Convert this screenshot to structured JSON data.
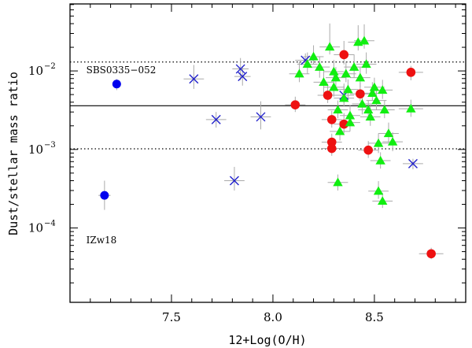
{
  "chart_data": {
    "type": "scatter",
    "title": "",
    "xlabel": "12+Log(O/H)",
    "ylabel": "Dust/stellar mass ratio",
    "x_scale": "linear",
    "y_scale": "log",
    "xlim": [
      7.0,
      8.95
    ],
    "ylim": [
      1.13e-05,
      0.0713
    ],
    "x_ticks": [
      {
        "value": 7.5,
        "label": "7.5"
      },
      {
        "value": 8.0,
        "label": "8.0"
      },
      {
        "value": 8.5,
        "label": "8.5"
      }
    ],
    "y_ticks": [
      {
        "value": 0.0001,
        "base": "10",
        "exp": "−4"
      },
      {
        "value": 0.001,
        "base": "10",
        "exp": "−3"
      },
      {
        "value": 0.01,
        "base": "10",
        "exp": "−2"
      }
    ],
    "reference_lines": [
      {
        "y": 0.0036,
        "style": "solid"
      },
      {
        "y": 0.013,
        "style": "dotted"
      },
      {
        "y": 0.00102,
        "style": "dotted"
      }
    ],
    "annotations": [
      {
        "text": "SBS0335−052",
        "x": 7.08,
        "y": 0.0094,
        "color": "#0000cc"
      },
      {
        "text": "IZw18",
        "x": 7.08,
        "y": 6.4e-05,
        "color": "#0000cc"
      }
    ],
    "colors": {
      "blue": "#0000ee",
      "blue_cross": "#2222cc",
      "green": "#11ee11",
      "red": "#ee1111",
      "errorbar": "#aaaaaa",
      "lines": "#000000"
    },
    "series": [
      {
        "marker": "filled-circle-blue",
        "points": [
          {
            "x": 7.23,
            "y": 0.0068,
            "xerr": 0.02,
            "yerr": [
              0.0011,
              0.0011
            ]
          },
          {
            "x": 7.17,
            "y": 0.00026,
            "xerr": 0.03,
            "yerr": [
              9e-05,
              0.00014
            ]
          }
        ]
      },
      {
        "marker": "cross-blue",
        "points": [
          {
            "x": 7.61,
            "y": 0.0079,
            "xerr": 0.05,
            "yerr": [
              0.002,
              0.004
            ]
          },
          {
            "x": 7.72,
            "y": 0.0024,
            "xerr": 0.05,
            "yerr": [
              0.0005,
              0.0006
            ]
          },
          {
            "x": 7.81,
            "y": 0.0004,
            "xerr": 0.05,
            "yerr": [
              0.0001,
              0.0002
            ]
          },
          {
            "x": 7.84,
            "y": 0.0106,
            "xerr": 0.04,
            "yerr": [
              0.003,
              0.004
            ]
          },
          {
            "x": 7.85,
            "y": 0.0085,
            "xerr": 0.04,
            "yerr": [
              0.002,
              0.003
            ]
          },
          {
            "x": 7.94,
            "y": 0.0026,
            "xerr": 0.05,
            "yerr": [
              0.0008,
              0.0015
            ]
          },
          {
            "x": 8.16,
            "y": 0.0137,
            "xerr": 0.05,
            "yerr": [
              0.002,
              0.003
            ]
          },
          {
            "x": 8.35,
            "y": 0.0049,
            "xerr": 0.05,
            "yerr": [
              0.001,
              0.002
            ]
          },
          {
            "x": 8.69,
            "y": 0.00066,
            "xerr": 0.05,
            "yerr": [
              0.0001,
              0.0001
            ]
          }
        ]
      },
      {
        "marker": "filled-circle-red",
        "points": [
          {
            "x": 8.11,
            "y": 0.0037,
            "xerr": 0.05,
            "yerr": [
              0.0007,
              0.001
            ]
          },
          {
            "x": 8.27,
            "y": 0.0049,
            "xerr": 0.05,
            "yerr": [
              0.001,
              0.002
            ]
          },
          {
            "x": 8.29,
            "y": 0.0024,
            "xerr": 0.05,
            "yerr": [
              0.0005,
              0.0007
            ]
          },
          {
            "x": 8.29,
            "y": 0.00124,
            "xerr": 0.05,
            "yerr": [
              0.00025,
              0.00035
            ]
          },
          {
            "x": 8.29,
            "y": 0.00103,
            "xerr": 0.05,
            "yerr": [
              0.0002,
              0.0003
            ]
          },
          {
            "x": 8.35,
            "y": 0.0161,
            "xerr": 0.05,
            "yerr": [
              0.004,
              0.008
            ]
          },
          {
            "x": 8.35,
            "y": 0.0021,
            "xerr": 0.05,
            "yerr": [
              0.0005,
              0.0008
            ]
          },
          {
            "x": 8.43,
            "y": 0.0051,
            "xerr": 0.05,
            "yerr": [
              0.001,
              0.002
            ]
          },
          {
            "x": 8.47,
            "y": 0.00098,
            "xerr": 0.05,
            "yerr": [
              0.0002,
              0.0003
            ]
          },
          {
            "x": 8.68,
            "y": 0.0096,
            "xerr": 0.06,
            "yerr": [
              0.002,
              0.002
            ]
          },
          {
            "x": 8.78,
            "y": 4.7e-05,
            "xerr": 0.06,
            "yerr": [
              7e-06,
              9e-06
            ]
          }
        ]
      },
      {
        "marker": "filled-triangle-green",
        "points": [
          {
            "x": 8.13,
            "y": 0.0092,
            "xerr": 0.05,
            "yerr": [
              0.002,
              0.004
            ]
          },
          {
            "x": 8.17,
            "y": 0.0122,
            "xerr": 0.05,
            "yerr": [
              0.003,
              0.005
            ]
          },
          {
            "x": 8.2,
            "y": 0.0152,
            "xerr": 0.05,
            "yerr": [
              0.003,
              0.006
            ]
          },
          {
            "x": 8.23,
            "y": 0.0112,
            "xerr": 0.05,
            "yerr": [
              0.003,
              0.004
            ]
          },
          {
            "x": 8.25,
            "y": 0.0072,
            "xerr": 0.05,
            "yerr": [
              0.002,
              0.003
            ]
          },
          {
            "x": 8.28,
            "y": 0.0202,
            "xerr": 0.05,
            "yerr": [
              0.004,
              0.02
            ]
          },
          {
            "x": 8.3,
            "y": 0.0098,
            "xerr": 0.05,
            "yerr": [
              0.002,
              0.004
            ]
          },
          {
            "x": 8.3,
            "y": 0.0062,
            "xerr": 0.05,
            "yerr": [
              0.0015,
              0.003
            ]
          },
          {
            "x": 8.31,
            "y": 0.0082,
            "xerr": 0.05,
            "yerr": [
              0.002,
              0.003
            ]
          },
          {
            "x": 8.32,
            "y": 0.0032,
            "xerr": 0.05,
            "yerr": [
              0.0007,
              0.001
            ]
          },
          {
            "x": 8.33,
            "y": 0.0017,
            "xerr": 0.05,
            "yerr": [
              0.0004,
              0.0006
            ]
          },
          {
            "x": 8.35,
            "y": 0.0045,
            "xerr": 0.05,
            "yerr": [
              0.001,
              0.002
            ]
          },
          {
            "x": 8.36,
            "y": 0.0092,
            "xerr": 0.05,
            "yerr": [
              0.002,
              0.004
            ]
          },
          {
            "x": 8.37,
            "y": 0.0058,
            "xerr": 0.05,
            "yerr": [
              0.0015,
              0.002
            ]
          },
          {
            "x": 8.38,
            "y": 0.0027,
            "xerr": 0.05,
            "yerr": [
              0.0006,
              0.001
            ]
          },
          {
            "x": 8.38,
            "y": 0.0022,
            "xerr": 0.05,
            "yerr": [
              0.0005,
              0.0008
            ]
          },
          {
            "x": 8.4,
            "y": 0.0112,
            "xerr": 0.05,
            "yerr": [
              0.003,
              0.005
            ]
          },
          {
            "x": 8.42,
            "y": 0.0232,
            "xerr": 0.05,
            "yerr": [
              0.005,
              0.015
            ]
          },
          {
            "x": 8.43,
            "y": 0.0082,
            "xerr": 0.05,
            "yerr": [
              0.002,
              0.003
            ]
          },
          {
            "x": 8.44,
            "y": 0.0038,
            "xerr": 0.05,
            "yerr": [
              0.001,
              0.001
            ]
          },
          {
            "x": 8.45,
            "y": 0.0242,
            "xerr": 0.05,
            "yerr": [
              0.005,
              0.015
            ]
          },
          {
            "x": 8.46,
            "y": 0.0122,
            "xerr": 0.05,
            "yerr": [
              0.003,
              0.005
            ]
          },
          {
            "x": 8.47,
            "y": 0.0032,
            "xerr": 0.05,
            "yerr": [
              0.0007,
              0.001
            ]
          },
          {
            "x": 8.48,
            "y": 0.0026,
            "xerr": 0.05,
            "yerr": [
              0.0006,
              0.001
            ]
          },
          {
            "x": 8.49,
            "y": 0.0052,
            "xerr": 0.05,
            "yerr": [
              0.001,
              0.002
            ]
          },
          {
            "x": 8.5,
            "y": 0.0062,
            "xerr": 0.05,
            "yerr": [
              0.0015,
              0.002
            ]
          },
          {
            "x": 8.51,
            "y": 0.0042,
            "xerr": 0.05,
            "yerr": [
              0.001,
              0.0015
            ]
          },
          {
            "x": 8.52,
            "y": 0.0012,
            "xerr": 0.05,
            "yerr": [
              0.0003,
              0.0004
            ]
          },
          {
            "x": 8.52,
            "y": 0.000295,
            "xerr": 0.05,
            "yerr": [
              6e-05,
              0.0001
            ]
          },
          {
            "x": 8.53,
            "y": 0.00072,
            "xerr": 0.05,
            "yerr": [
              0.00015,
              0.0002
            ]
          },
          {
            "x": 8.54,
            "y": 0.0057,
            "xerr": 0.05,
            "yerr": [
              0.0013,
              0.002
            ]
          },
          {
            "x": 8.54,
            "y": 0.00022,
            "xerr": 0.05,
            "yerr": [
              4e-05,
              6e-05
            ]
          },
          {
            "x": 8.55,
            "y": 0.0032,
            "xerr": 0.05,
            "yerr": [
              0.0007,
              0.001
            ]
          },
          {
            "x": 8.57,
            "y": 0.0016,
            "xerr": 0.05,
            "yerr": [
              0.0004,
              0.0006
            ]
          },
          {
            "x": 8.59,
            "y": 0.00125,
            "xerr": 0.05,
            "yerr": [
              0.0003,
              0.0004
            ]
          },
          {
            "x": 8.32,
            "y": 0.00038,
            "xerr": 0.05,
            "yerr": [
              8e-05,
              0.0001
            ]
          },
          {
            "x": 8.68,
            "y": 0.0033,
            "xerr": 0.06,
            "yerr": [
              0.0007,
              0.001
            ]
          }
        ]
      }
    ]
  }
}
